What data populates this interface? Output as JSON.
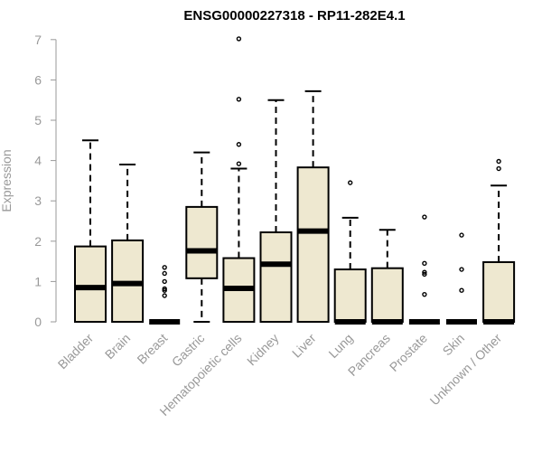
{
  "chart_data": {
    "type": "boxplot",
    "title": "ENSG00000227318 - RP11-282E4.1",
    "xlabel": "",
    "ylabel": "Expression",
    "ylim": [
      0,
      7
    ],
    "yticks": [
      0,
      1,
      2,
      3,
      4,
      5,
      6,
      7
    ],
    "grid": false,
    "box_color": "#EEE8D0",
    "categories": [
      "Bladder",
      "Brain",
      "Breast",
      "Gastric",
      "Hematopoietic cells",
      "Kidney",
      "Liver",
      "Lung",
      "Pancreas",
      "Prostate",
      "Skin",
      "Unknown / Other"
    ],
    "boxes": [
      {
        "q1": 0,
        "median": 0.85,
        "q3": 1.87,
        "whisker_low": 0,
        "whisker_high": 4.5,
        "outliers": []
      },
      {
        "q1": 0,
        "median": 0.95,
        "q3": 2.02,
        "whisker_low": 0,
        "whisker_high": 3.9,
        "outliers": []
      },
      {
        "q1": 0,
        "median": 0,
        "q3": 0,
        "whisker_low": 0,
        "whisker_high": 0,
        "outliers": [
          0.65,
          0.78,
          0.82,
          1.0,
          1.2,
          1.35
        ]
      },
      {
        "q1": 1.08,
        "median": 1.76,
        "q3": 2.85,
        "whisker_low": 0,
        "whisker_high": 4.2,
        "outliers": []
      },
      {
        "q1": 0,
        "median": 0.83,
        "q3": 1.58,
        "whisker_low": 0,
        "whisker_high": 3.8,
        "outliers": [
          3.92,
          4.4,
          5.52,
          7.02
        ]
      },
      {
        "q1": 0,
        "median": 1.43,
        "q3": 2.22,
        "whisker_low": 0,
        "whisker_high": 5.5,
        "outliers": []
      },
      {
        "q1": 0,
        "median": 2.25,
        "q3": 3.83,
        "whisker_low": 0,
        "whisker_high": 5.72,
        "outliers": []
      },
      {
        "q1": 0,
        "median": 0,
        "q3": 1.3,
        "whisker_low": 0,
        "whisker_high": 2.58,
        "outliers": [
          3.45
        ]
      },
      {
        "q1": 0,
        "median": 0,
        "q3": 1.33,
        "whisker_low": 0,
        "whisker_high": 2.28,
        "outliers": []
      },
      {
        "q1": 0,
        "median": 0,
        "q3": 0,
        "whisker_low": 0,
        "whisker_high": 0,
        "outliers": [
          0.68,
          1.18,
          1.23,
          1.45,
          2.6
        ]
      },
      {
        "q1": 0,
        "median": 0,
        "q3": 0,
        "whisker_low": 0,
        "whisker_high": 0,
        "outliers": [
          0.78,
          1.3,
          2.15
        ]
      },
      {
        "q1": 0,
        "median": 0,
        "q3": 1.48,
        "whisker_low": 0,
        "whisker_high": 3.38,
        "outliers": [
          3.8,
          3.98
        ]
      }
    ]
  }
}
